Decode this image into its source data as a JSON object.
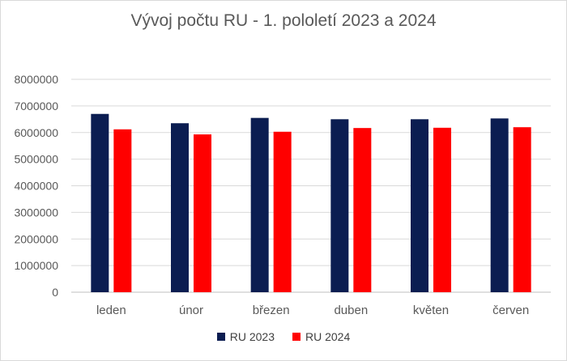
{
  "chart_data": {
    "type": "bar",
    "title": "Vývoj počtu RU - 1. pololetí 2023 a 2024",
    "xlabel": "",
    "ylabel": "",
    "categories": [
      "leden",
      "únor",
      "březen",
      "duben",
      "květen",
      "červen"
    ],
    "series": [
      {
        "name": "RU 2023",
        "color": "#0b1d51",
        "values": [
          6700000,
          6350000,
          6550000,
          6500000,
          6500000,
          6530000
        ]
      },
      {
        "name": "RU 2024",
        "color": "#ff0000",
        "values": [
          6120000,
          5930000,
          6030000,
          6170000,
          6180000,
          6200000
        ]
      }
    ],
    "ylim": [
      0,
      8000000
    ],
    "yticks": [
      "0",
      "1000000",
      "2000000",
      "3000000",
      "4000000",
      "5000000",
      "6000000",
      "7000000",
      "8000000"
    ],
    "grid": true,
    "legend_position": "bottom"
  }
}
